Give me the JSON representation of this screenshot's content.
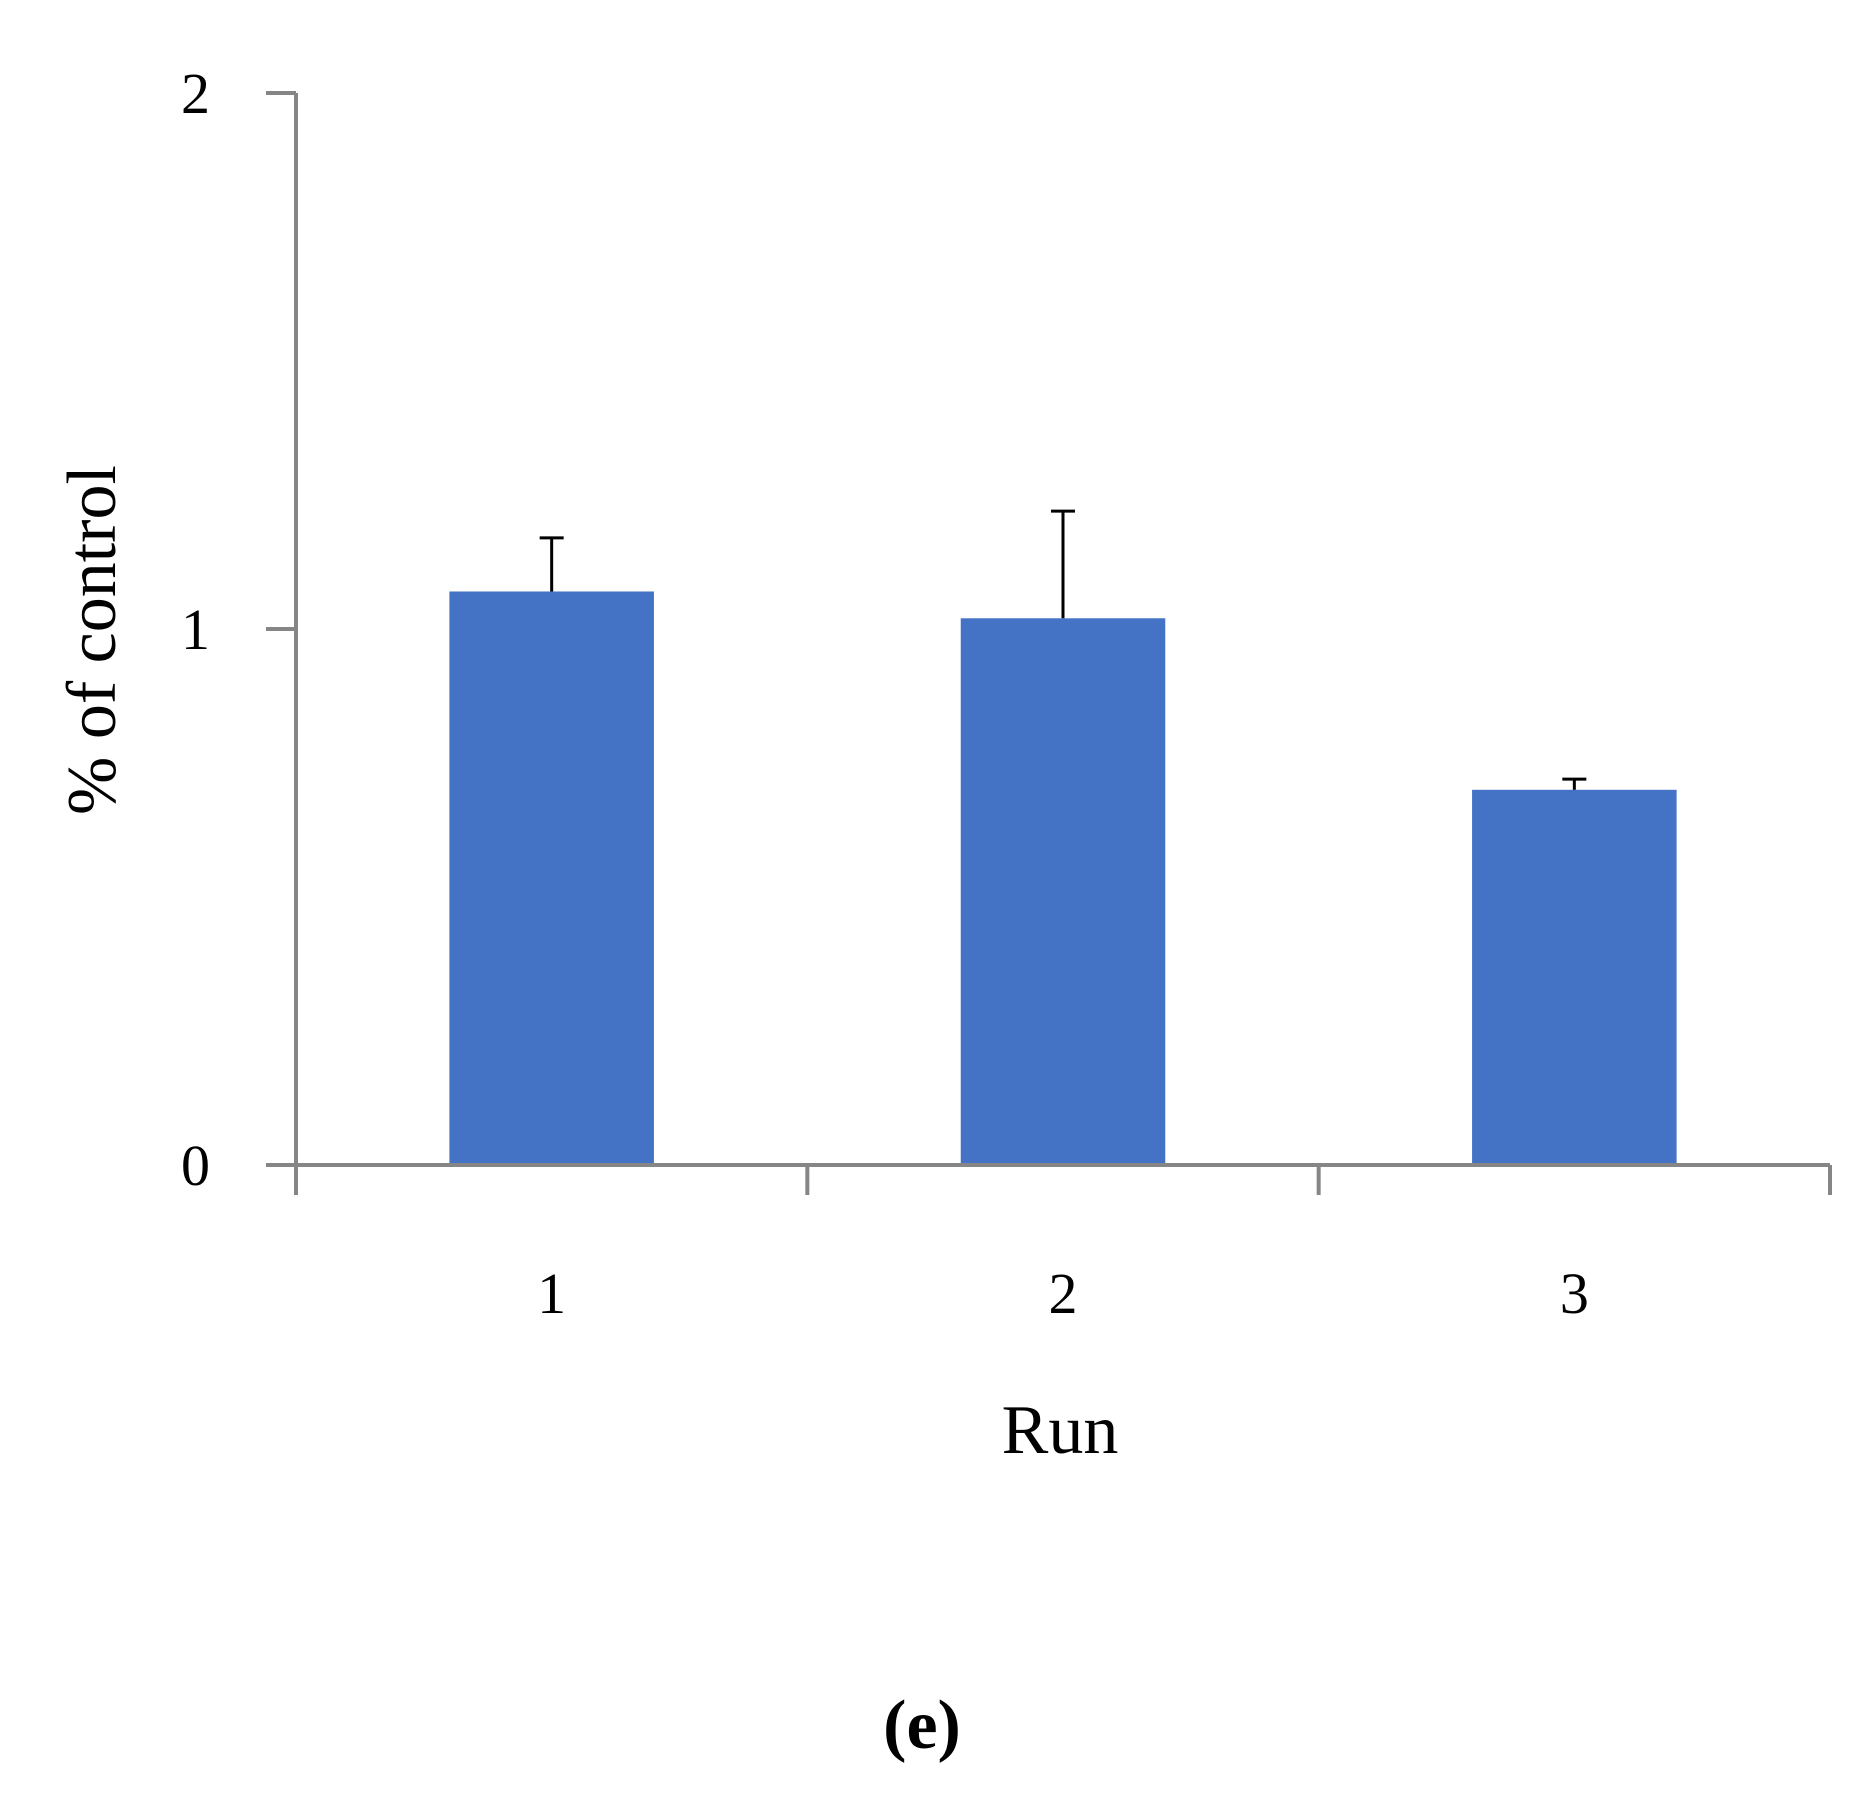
{
  "chart_data": {
    "type": "bar",
    "categories": [
      "1",
      "2",
      "3"
    ],
    "values": [
      1.07,
      1.02,
      0.7
    ],
    "error_upper": [
      0.1,
      0.2,
      0.02
    ],
    "xlabel": "Run",
    "ylabel": "% of control",
    "ylim": [
      0,
      2
    ],
    "yticks": [
      "0",
      "1",
      "2"
    ],
    "grid": false,
    "legend": "none",
    "bar_color": "#4472C4",
    "axis_color": "#868686",
    "error_bar_color": "#000000"
  },
  "panel_label": {
    "open": "(",
    "letter": "e",
    "close": ")"
  }
}
